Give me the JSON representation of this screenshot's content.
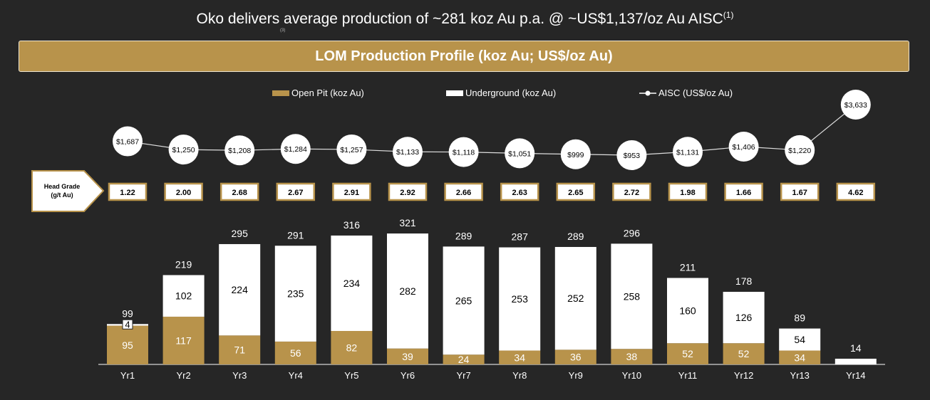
{
  "title": "Oko delivers average production of ~281 koz Au p.a. @ ~US$1,137/oz Au AISC",
  "title_footnote": "(1)",
  "small_footnote": "(3)",
  "banner": "LOM Production Profile (koz Au; US$/oz Au)",
  "colors": {
    "open_pit": "#b8934b",
    "underground": "#ffffff",
    "background": "#262626"
  },
  "chart_data": {
    "type": "bar",
    "stacked": true,
    "legend_position": "top",
    "categories": [
      "Yr1",
      "Yr2",
      "Yr3",
      "Yr4",
      "Yr5",
      "Yr6",
      "Yr7",
      "Yr8",
      "Yr9",
      "Yr10",
      "Yr11",
      "Yr12",
      "Yr13",
      "Yr14"
    ],
    "series": [
      {
        "name": "Open Pit (koz Au)",
        "values": [
          95,
          117,
          71,
          56,
          82,
          39,
          24,
          34,
          36,
          38,
          52,
          52,
          34,
          0
        ]
      },
      {
        "name": "Underground (koz Au)",
        "values": [
          4,
          102,
          224,
          235,
          234,
          282,
          265,
          253,
          252,
          258,
          160,
          126,
          54,
          14
        ]
      }
    ],
    "totals": [
      99,
      219,
      295,
      291,
      316,
      321,
      289,
      287,
      289,
      296,
      211,
      178,
      89,
      14
    ],
    "line_series": {
      "name": "AISC (US$/oz Au)",
      "labels": [
        "$1,687",
        "$1,250",
        "$1,208",
        "$1,284",
        "$1,257",
        "$1,133",
        "$1,118",
        "$1,051",
        "$999",
        "$953",
        "$1,131",
        "$1,406",
        "$1,220",
        "$3,633"
      ],
      "values": [
        1687,
        1250,
        1208,
        1284,
        1257,
        1133,
        1118,
        1051,
        999,
        953,
        1131,
        1406,
        1220,
        3633
      ]
    },
    "head_grade": {
      "label_line1": "Head Grade",
      "label_line2": "(g/t Au)",
      "values": [
        "1.22",
        "2.00",
        "2.68",
        "2.67",
        "2.91",
        "2.92",
        "2.66",
        "2.63",
        "2.65",
        "2.72",
        "1.98",
        "1.66",
        "1.67",
        "4.62"
      ]
    }
  }
}
